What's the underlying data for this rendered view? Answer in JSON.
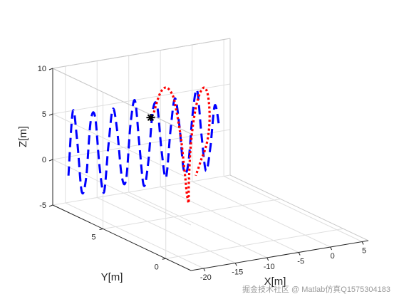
{
  "chart_data": {
    "type": "line",
    "projection": "3d",
    "grid": true,
    "box": "open",
    "xlabel": "X[m]",
    "ylabel": "Y[m]",
    "zlabel": "Z[m]",
    "xlim": [
      -22,
      6
    ],
    "ylim": [
      -2,
      9
    ],
    "zlim": [
      -5,
      10
    ],
    "xticks": [
      -20,
      -15,
      -10,
      -5,
      0,
      5
    ],
    "yticks": [
      0,
      5
    ],
    "zticks": [
      -5,
      0,
      5,
      10
    ],
    "xtick_labels": [
      "-20",
      "-15",
      "-10",
      "-5",
      "0",
      "5"
    ],
    "ytick_labels": [
      "0",
      "5"
    ],
    "ztick_labels": [
      "-5",
      "0",
      "5",
      "10"
    ],
    "series": [
      {
        "style": "dashed",
        "color": "#0000ff",
        "x": [
          -21.9,
          -21.2,
          -20.5,
          -19.8,
          -19.1,
          -18.4,
          -17.7,
          -17.0,
          -16.3,
          -15.6,
          -14.9,
          -14.2,
          -13.5,
          -12.8,
          -12.1,
          -11.4,
          -10.7,
          -10.0,
          -9.3,
          -8.6,
          -7.9,
          -7.2,
          -6.5,
          -5.8,
          -5.1,
          -4.4,
          -3.7,
          -3.0,
          -2.3,
          -1.6,
          -0.9,
          -0.2,
          0.5,
          1.2,
          1.9
        ],
        "y": [
          7.8,
          7.8,
          7.8,
          7.8,
          7.8,
          7.8,
          7.8,
          7.8,
          7.8,
          7.8,
          7.8,
          7.8,
          7.8,
          7.8,
          7.8,
          7.8,
          7.8,
          7.8,
          7.8,
          7.8,
          7.8,
          7.8,
          7.8,
          7.8,
          7.8,
          7.8,
          7.8,
          7.8,
          7.8,
          7.8,
          7.8,
          7.8,
          7.8,
          7.8,
          7.8
        ],
        "z": [
          -1.0,
          6.0,
          2.5,
          -3.0,
          -1.5,
          4.5,
          5.0,
          -0.5,
          -3.5,
          1.5,
          5.5,
          3.0,
          -2.0,
          -2.5,
          3.5,
          6.0,
          1.0,
          -3.5,
          -1.0,
          4.5,
          5.0,
          0.0,
          -3.0,
          2.0,
          5.5,
          2.5,
          -2.5,
          -2.0,
          3.5,
          6.0,
          1.0,
          -3.0,
          -0.5,
          4.0,
          1.5
        ]
      },
      {
        "style": "dotted",
        "color": "#ff0000",
        "x": [
          -11.0,
          -10.0,
          -9.0,
          -8.0,
          -7.5,
          -7.0,
          -6.6,
          -6.3,
          -6.0,
          -5.8,
          -5.6,
          -5.5,
          -5.5,
          -5.4,
          -5.2,
          -4.8,
          -4.3,
          -3.7,
          -3.1,
          -2.6,
          -2.3,
          -2.2,
          -2.4,
          -2.9,
          -3.5,
          -4.0,
          -4.4
        ],
        "y": [
          6.5,
          6.5,
          6.5,
          6.5,
          6.5,
          6.5,
          6.5,
          6.5,
          6.5,
          6.5,
          6.5,
          6.5,
          6.5,
          6.5,
          6.5,
          6.5,
          6.5,
          6.5,
          6.5,
          6.5,
          6.5,
          6.5,
          6.5,
          6.5,
          6.5,
          6.5,
          6.5
        ],
        "z": [
          5.5,
          7.5,
          8.0,
          7.0,
          5.5,
          3.5,
          1.5,
          -0.5,
          -2.5,
          -4.0,
          -4.8,
          -5.0,
          -3.5,
          -1.5,
          1.0,
          3.5,
          5.5,
          6.8,
          7.3,
          6.8,
          5.5,
          3.8,
          2.0,
          0.5,
          -0.5,
          -1.5,
          -2.2
        ]
      }
    ],
    "marker": {
      "x": -11.5,
      "y": 6.5,
      "z": 5.0,
      "color": "#000000"
    }
  },
  "watermark": "掘金技术社区 @ Matlab仿真Q1575304183"
}
